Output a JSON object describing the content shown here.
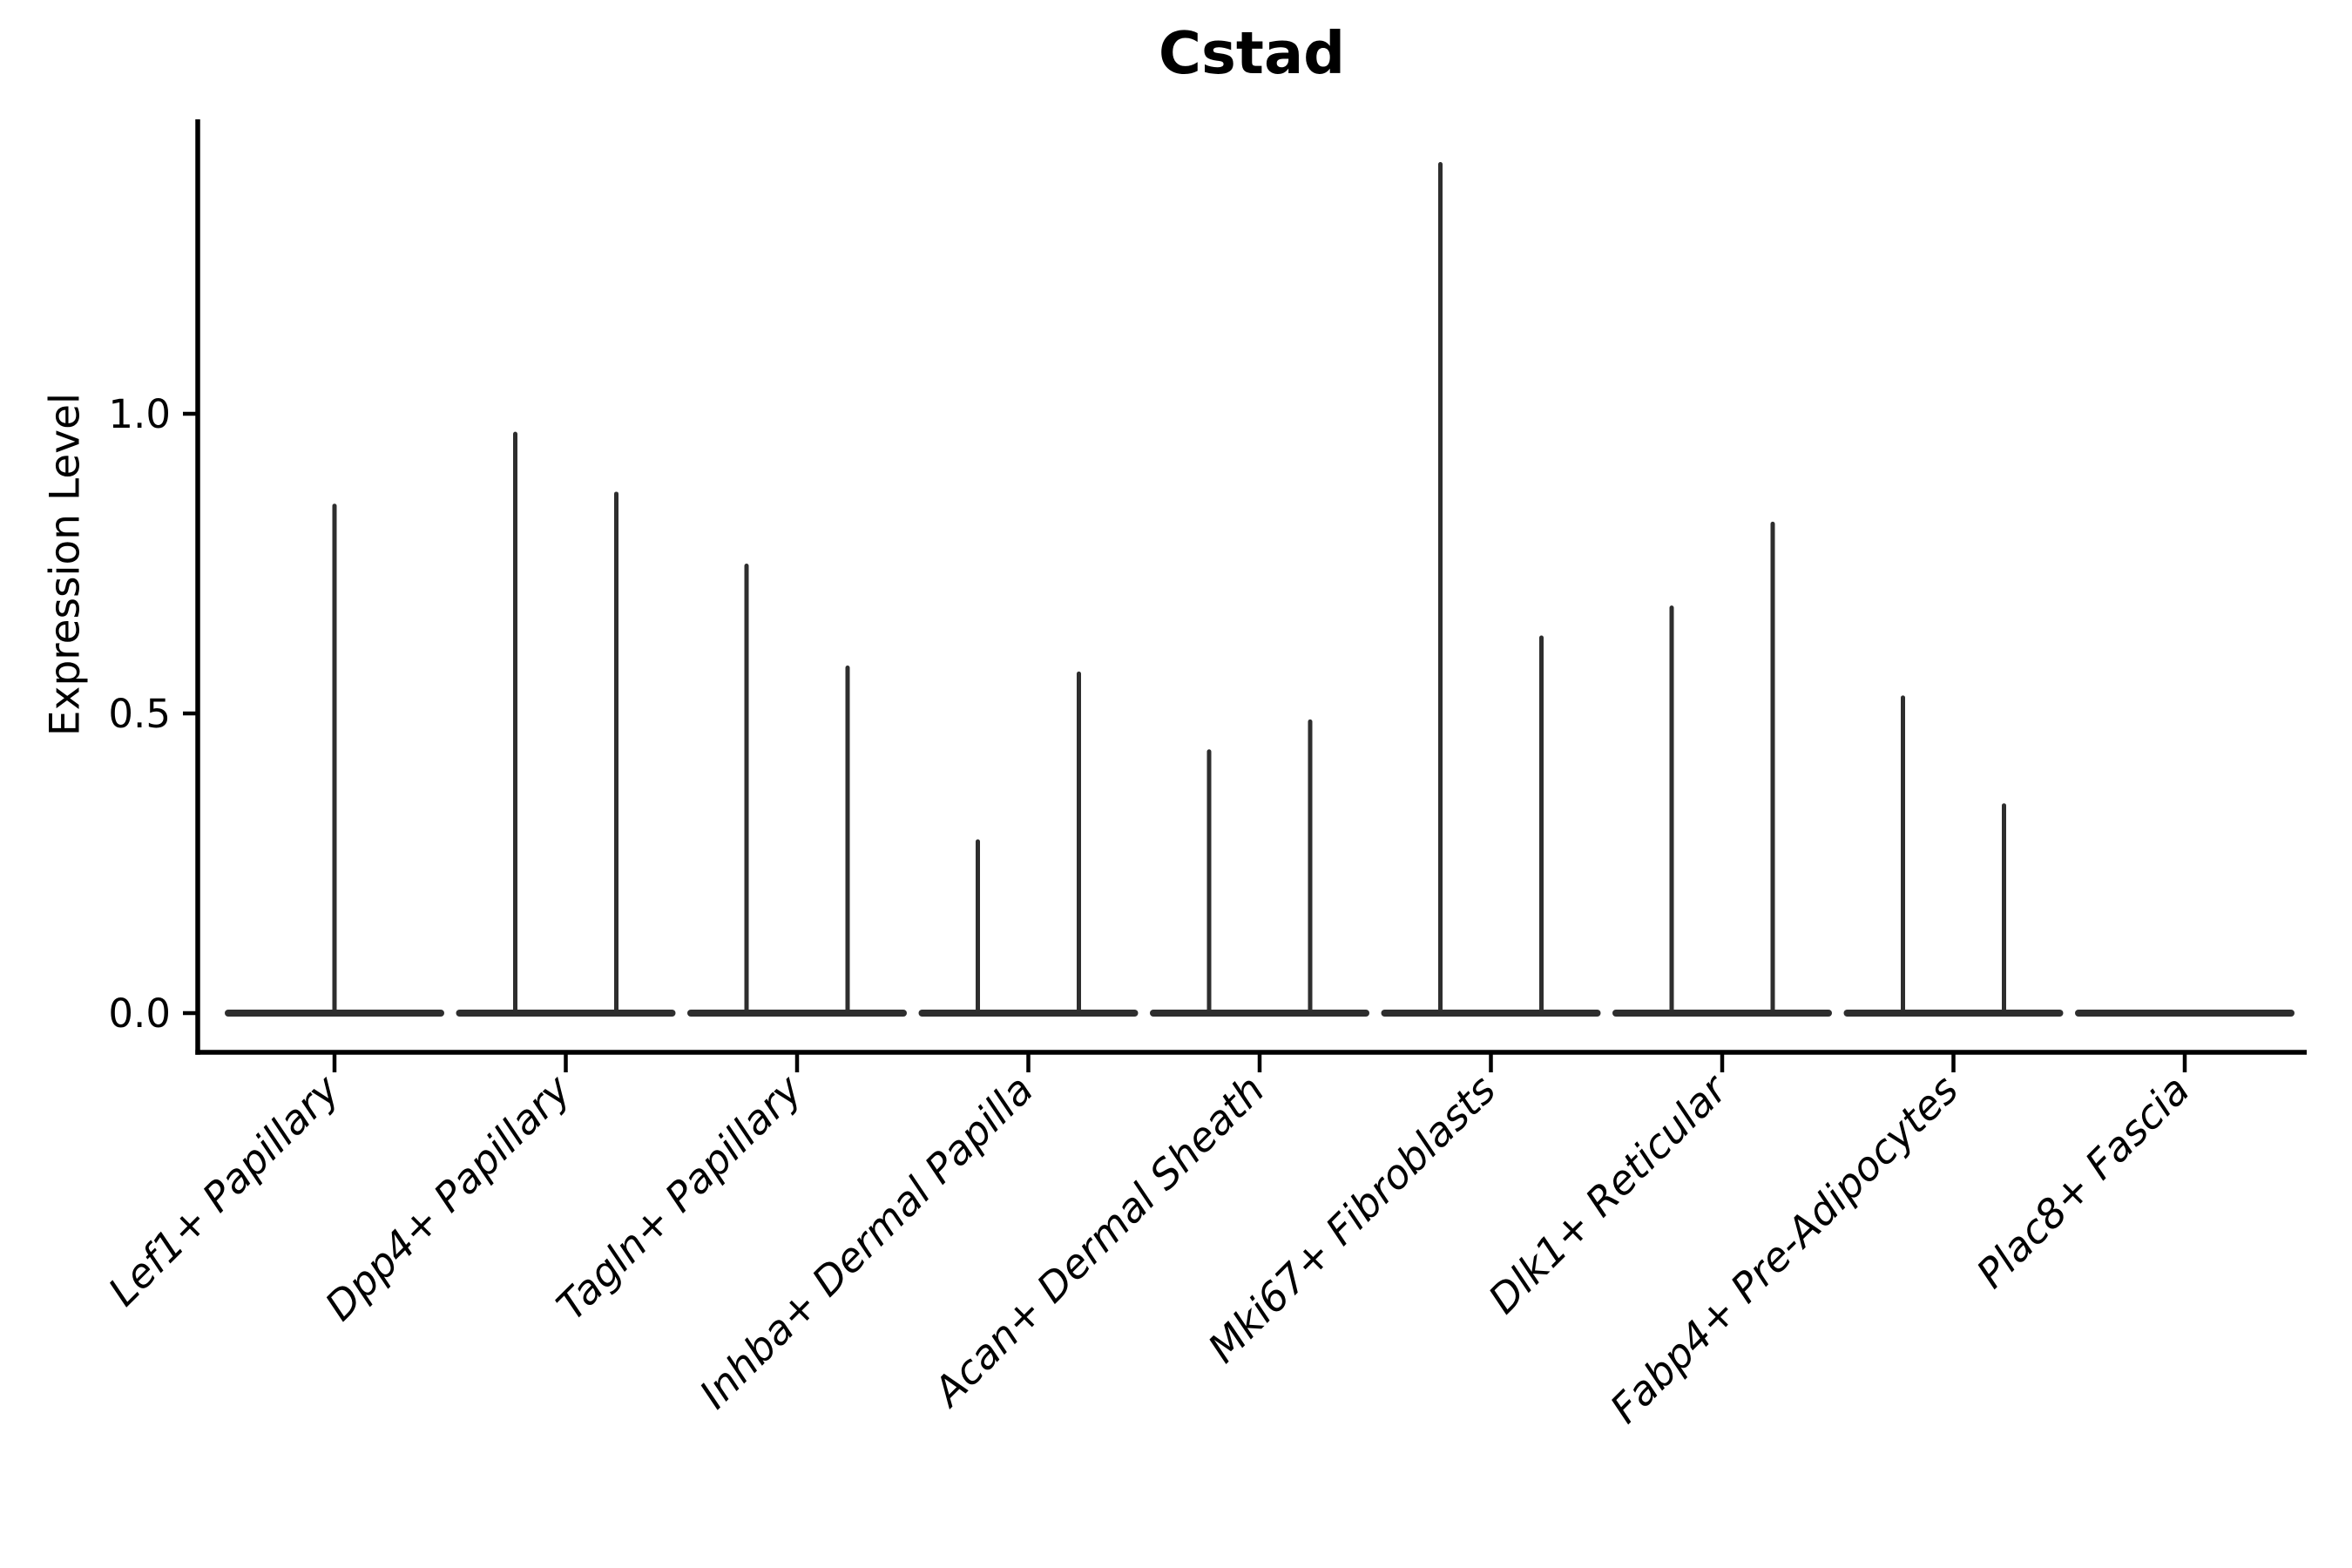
{
  "chart_data": {
    "type": "violin",
    "title": "Cstad",
    "ylabel": "Expression Level",
    "xlabel": "",
    "yticks": [
      0.0,
      0.5,
      1.0
    ],
    "ytick_labels": [
      "0.0",
      "0.5",
      "1.0"
    ],
    "ylim": [
      -0.07,
      1.49
    ],
    "grid": false,
    "legend_position": "none",
    "violin_color": "#2e2e2e",
    "axis_color": "#000000",
    "categories": [
      "Lef1+ Papillary",
      "Dpp4+ Papillary",
      "Tagln+ Papillary",
      "Inhba+ Dermal Papilla",
      "Acan+ Dermal Sheath",
      "Mki67+ Fibroblasts",
      "Dlk1+ Reticular",
      "Fabp4+ Pre-Adipocytes",
      "Plac8+ Fascia"
    ],
    "violins": [
      {
        "category": "Lef1+ Papillary",
        "spike_maxima": [
          0.85
        ]
      },
      {
        "category": "Dpp4+ Papillary",
        "spike_maxima": [
          0.97,
          0.87
        ]
      },
      {
        "category": "Tagln+ Papillary",
        "spike_maxima": [
          0.75,
          0.58
        ]
      },
      {
        "category": "Inhba+ Dermal Papilla",
        "spike_maxima": [
          0.29,
          0.57
        ]
      },
      {
        "category": "Acan+ Dermal Sheath",
        "spike_maxima": [
          0.44,
          0.49
        ]
      },
      {
        "category": "Mki67+ Fibroblasts",
        "spike_maxima": [
          1.42,
          0.63
        ]
      },
      {
        "category": "Dlk1+ Reticular",
        "spike_maxima": [
          0.68,
          0.82
        ]
      },
      {
        "category": "Fabp4+ Pre-Adipocytes",
        "spike_maxima": [
          0.53,
          0.35
        ]
      },
      {
        "category": "Plac8+ Fascia",
        "spike_maxima": []
      }
    ]
  }
}
